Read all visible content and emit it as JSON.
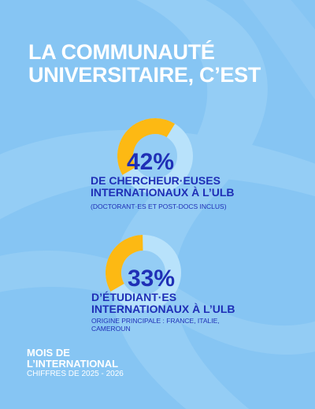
{
  "header": {
    "title_line1": "LA COMMUNAUTÉ",
    "title_line2": "UNIVERSITAIRE, C’EST"
  },
  "stats": [
    {
      "value": "42%",
      "fraction": 0.42,
      "label_line1": "DE CHERCHEUR·EUSES",
      "label_line2": "INTERNATIONAUX À L’ULB",
      "note_line1": "(DOCTORANT·ES ET POST-DOCS INCLUS)",
      "note_line2": ""
    },
    {
      "value": "33%",
      "fraction": 0.33,
      "label_line1": "D’ÉTUDIANT·ES",
      "label_line2": "INTERNATIONAUX À L’ULB",
      "note_line1": "ORIGINE PRINCIPALE : FRANCE, ITALIE,",
      "note_line2": "CAMEROUN"
    }
  ],
  "footer": {
    "line1": "MOIS DE",
    "line2": "L’INTERNATIONAL",
    "line3": "CHIFFRES DE 2025 - 2026"
  },
  "colors": {
    "background": "#86c5f3",
    "accent": "#fdb913",
    "ring_rest": "#b8e2fb",
    "text_dark": "#1f2fb6",
    "text_light": "#ffffff"
  }
}
